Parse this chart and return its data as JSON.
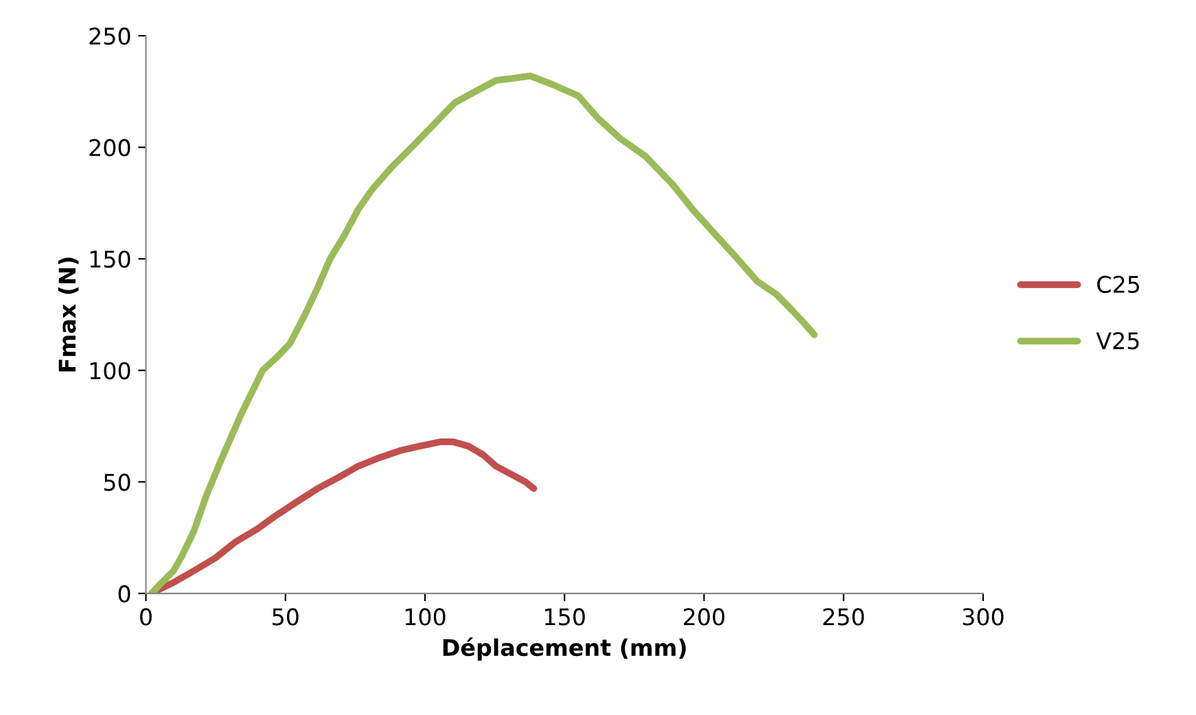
{
  "chart_data": {
    "type": "line",
    "xlabel": "Déplacement (mm)",
    "ylabel": "Fmax (N)",
    "xlim": [
      0,
      300
    ],
    "xticks": [
      0,
      50,
      100,
      150,
      200,
      250,
      300
    ],
    "ylim": [
      0,
      250
    ],
    "yticks": [
      0,
      50,
      100,
      150,
      200,
      250
    ],
    "grid": false,
    "legend": "right",
    "marker": "none",
    "line_style": "solid",
    "series": [
      {
        "name": "C25",
        "color": "#c0504d",
        "x": [
          3.4,
          10,
          17,
          25,
          32,
          40,
          46.7,
          54,
          61.5,
          69,
          76,
          84,
          91,
          98,
          105.7,
          110,
          115.6,
          121,
          125.5,
          130,
          133,
          136,
          139
        ],
        "values": [
          1,
          5,
          10,
          16,
          23,
          29,
          35,
          41,
          47,
          52,
          57,
          61,
          64,
          66,
          68,
          68,
          66,
          62,
          57,
          54,
          52,
          50,
          47
        ]
      },
      {
        "name": "V25",
        "color": "#9bbb59",
        "x": [
          2,
          5,
          9.8,
          13,
          17.2,
          22,
          27,
          34,
          41.8,
          47,
          51.6,
          57,
          61.5,
          66,
          71.3,
          76,
          81,
          88,
          96,
          103,
          110.7,
          118,
          125.5,
          132,
          137.7,
          146,
          155,
          162,
          169.9,
          179,
          189,
          196,
          204,
          212,
          219,
          226,
          231.5,
          236,
          239.5
        ],
        "values": [
          0,
          4,
          10,
          17,
          28,
          45,
          60,
          80,
          100,
          106,
          112,
          125,
          137,
          150,
          161,
          172,
          181,
          191,
          201,
          210,
          220,
          225,
          230,
          231,
          232,
          228,
          223,
          213,
          204,
          196,
          183,
          172,
          161,
          150,
          140,
          134,
          127,
          121,
          116
        ]
      }
    ]
  }
}
